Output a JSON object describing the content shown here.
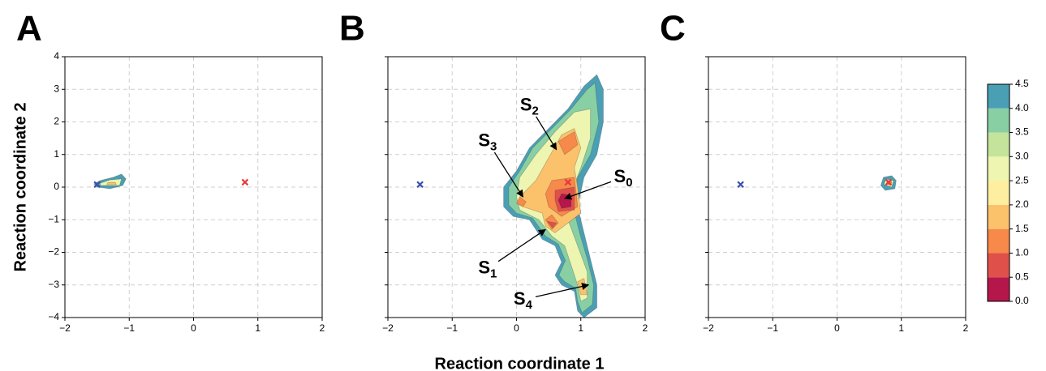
{
  "xlabel": "Reaction coordinate 1",
  "ylabel": "Reaction coordinate 2",
  "colorbar": {
    "ticks": [
      {
        "value": 0,
        "label": "0.0"
      },
      0.5,
      {
        "value": 1,
        "label": "1.0"
      },
      1.5,
      {
        "value": 2,
        "label": "2.0"
      },
      2.5,
      {
        "value": 3,
        "label": "3.0"
      },
      3.5,
      {
        "value": 4,
        "label": "4.0"
      },
      4.5
    ],
    "colors": [
      "#b5174b",
      "#e0504a",
      "#f7894a",
      "#fcc16b",
      "#fdeea0",
      "#eef5b0",
      "#c5e49b",
      "#88cfa4",
      "#4a9fb4"
    ]
  },
  "chart_data": [
    {
      "type": "contour",
      "panel_label": "A",
      "grid": true,
      "show_ytick_labels": true,
      "xlim": [
        -2,
        2
      ],
      "ylim": [
        -4,
        4
      ],
      "xticks": [
        {
          "value": -2,
          "label": "−2"
        },
        {
          "value": -1,
          "label": "−1"
        },
        0,
        1,
        2
      ],
      "yticks": [
        {
          "value": -4,
          "label": "−4"
        },
        {
          "value": -3,
          "label": "−3"
        },
        {
          "value": -2,
          "label": "−2"
        },
        {
          "value": -1,
          "label": "−1"
        },
        0,
        1,
        2,
        3,
        4
      ],
      "contours": [
        {
          "level": 4.5,
          "polygons": [
            [
              [
                -1.5,
                0.0
              ],
              [
                -1.3,
                -0.05
              ],
              [
                -1.1,
                0.05
              ],
              [
                -1.05,
                0.25
              ],
              [
                -1.12,
                0.4
              ],
              [
                -1.25,
                0.3
              ],
              [
                -1.45,
                0.2
              ],
              [
                -1.55,
                0.1
              ]
            ]
          ]
        },
        {
          "level": 3,
          "polygons": [
            [
              [
                -1.45,
                0.05
              ],
              [
                -1.15,
                0.05
              ],
              [
                -1.12,
                0.25
              ],
              [
                -1.3,
                0.22
              ],
              [
                -1.45,
                0.12
              ]
            ]
          ]
        },
        {
          "level": 2,
          "polygons": [
            [
              [
                -1.35,
                0.08
              ],
              [
                -1.2,
                0.08
              ],
              [
                -1.22,
                0.15
              ],
              [
                -1.33,
                0.14
              ]
            ]
          ]
        }
      ],
      "points": {
        "x": [
          -1.5,
          0.8
        ],
        "y": [
          0.08,
          0.15
        ],
        "colors": [
          "#3a4fb0",
          "#e83a3a"
        ]
      },
      "annotations": []
    },
    {
      "type": "contour",
      "panel_label": "B",
      "grid": true,
      "show_ytick_labels": false,
      "xlim": [
        -2,
        2
      ],
      "ylim": [
        -4,
        4
      ],
      "xticks": [
        {
          "value": -2,
          "label": "−2"
        },
        {
          "value": -1,
          "label": "−1"
        },
        0,
        1,
        2
      ],
      "yticks": [
        -4,
        -3,
        -2,
        -1,
        0,
        1,
        2,
        3,
        4
      ],
      "contours": [
        {
          "level": 4.5,
          "polygons": [
            [
              [
                1.25,
                3.45
              ],
              [
                1.35,
                3.0
              ],
              [
                1.35,
                2.0
              ],
              [
                1.25,
                1.0
              ],
              [
                1.05,
                0.3
              ],
              [
                0.95,
                -0.6
              ],
              [
                1.05,
                -1.4
              ],
              [
                1.15,
                -2.2
              ],
              [
                1.25,
                -3.0
              ],
              [
                1.25,
                -3.7
              ],
              [
                1.05,
                -4.0
              ],
              [
                0.95,
                -3.8
              ],
              [
                0.9,
                -3.2
              ],
              [
                0.7,
                -3.0
              ],
              [
                0.6,
                -2.7
              ],
              [
                0.7,
                -2.3
              ],
              [
                0.6,
                -1.8
              ],
              [
                0.4,
                -1.6
              ],
              [
                0.2,
                -1.0
              ],
              [
                -0.05,
                -0.9
              ],
              [
                -0.2,
                -0.6
              ],
              [
                -0.2,
                0.0
              ],
              [
                0.0,
                0.5
              ],
              [
                0.2,
                1.2
              ],
              [
                0.5,
                1.8
              ],
              [
                0.8,
                2.4
              ],
              [
                1.05,
                3.1
              ]
            ]
          ]
        },
        {
          "level": 4,
          "polygons": [
            [
              [
                1.22,
                3.2
              ],
              [
                1.28,
                2.0
              ],
              [
                1.15,
                1.0
              ],
              [
                0.95,
                0.3
              ],
              [
                0.88,
                -0.6
              ],
              [
                0.98,
                -1.4
              ],
              [
                1.1,
                -2.2
              ],
              [
                1.2,
                -3.0
              ],
              [
                1.18,
                -3.6
              ],
              [
                1.02,
                -3.85
              ],
              [
                0.95,
                -3.5
              ],
              [
                0.92,
                -3.1
              ],
              [
                0.75,
                -2.9
              ],
              [
                0.66,
                -2.7
              ],
              [
                0.76,
                -2.25
              ],
              [
                0.65,
                -1.75
              ],
              [
                0.45,
                -1.5
              ],
              [
                0.25,
                -0.95
              ],
              [
                0.0,
                -0.8
              ],
              [
                -0.12,
                -0.55
              ],
              [
                -0.12,
                0.0
              ],
              [
                0.05,
                0.5
              ],
              [
                0.25,
                1.2
              ],
              [
                0.55,
                1.8
              ],
              [
                0.85,
                2.4
              ],
              [
                1.1,
                3.0
              ]
            ]
          ]
        },
        {
          "level": 3,
          "polygons": [
            [
              [
                1.15,
                2.4
              ],
              [
                1.15,
                1.5
              ],
              [
                1.0,
                0.6
              ],
              [
                0.85,
                -0.2
              ],
              [
                0.8,
                -1.0
              ],
              [
                0.95,
                -1.8
              ],
              [
                1.1,
                -2.6
              ],
              [
                1.1,
                -3.4
              ],
              [
                1.0,
                -3.5
              ],
              [
                0.95,
                -3.0
              ],
              [
                0.85,
                -2.4
              ],
              [
                0.75,
                -1.8
              ],
              [
                0.55,
                -1.5
              ],
              [
                0.35,
                -1.0
              ],
              [
                0.05,
                -0.7
              ],
              [
                0.0,
                -0.3
              ],
              [
                0.05,
                0.3
              ],
              [
                0.3,
                1.0
              ],
              [
                0.6,
                1.7
              ],
              [
                0.9,
                2.3
              ]
            ]
          ]
        },
        {
          "level": 2,
          "polygons": [
            [
              [
                0.9,
                1.8
              ],
              [
                1.0,
                1.2
              ],
              [
                0.9,
                0.6
              ],
              [
                0.95,
                0.0
              ],
              [
                1.0,
                -0.8
              ],
              [
                0.8,
                -1.1
              ],
              [
                0.6,
                -1.4
              ],
              [
                0.45,
                -1.2
              ],
              [
                0.4,
                -0.8
              ],
              [
                0.1,
                -0.6
              ],
              [
                0.05,
                -0.3
              ],
              [
                0.3,
                0.2
              ],
              [
                0.5,
                0.9
              ],
              [
                0.7,
                1.6
              ]
            ],
            [
              [
                1.05,
                -2.8
              ],
              [
                1.1,
                -3.3
              ],
              [
                1.0,
                -3.3
              ],
              [
                0.95,
                -2.9
              ]
            ]
          ]
        },
        {
          "level": 1.5,
          "polygons": [
            [
              [
                0.65,
                1.4
              ],
              [
                0.9,
                1.7
              ],
              [
                0.95,
                1.3
              ],
              [
                0.75,
                1.0
              ]
            ],
            [
              [
                0.55,
                0.2
              ],
              [
                0.9,
                0.3
              ],
              [
                0.95,
                -0.6
              ],
              [
                0.7,
                -0.9
              ],
              [
                0.5,
                -0.6
              ],
              [
                0.45,
                -0.2
              ]
            ],
            [
              [
                0.45,
                -1.0
              ],
              [
                0.55,
                -1.3
              ],
              [
                0.65,
                -1.1
              ],
              [
                0.55,
                -0.85
              ]
            ],
            [
              [
                0.05,
                -0.3
              ],
              [
                0.15,
                -0.45
              ],
              [
                0.1,
                -0.6
              ],
              [
                0.0,
                -0.5
              ]
            ]
          ]
        },
        {
          "level": 1,
          "polygons": [
            [
              [
                0.6,
                -0.1
              ],
              [
                0.9,
                0.0
              ],
              [
                0.9,
                -0.7
              ],
              [
                0.65,
                -0.75
              ],
              [
                0.6,
                -0.4
              ]
            ],
            [
              [
                0.48,
                -1.05
              ],
              [
                0.56,
                -1.25
              ],
              [
                0.62,
                -1.1
              ]
            ]
          ]
        },
        {
          "level": 0.5,
          "polygons": [
            [
              [
                0.7,
                -0.2
              ],
              [
                0.85,
                -0.25
              ],
              [
                0.85,
                -0.6
              ],
              [
                0.7,
                -0.65
              ],
              [
                0.65,
                -0.4
              ]
            ]
          ]
        }
      ],
      "points": {
        "x": [
          -1.5,
          0.8
        ],
        "y": [
          0.08,
          0.15
        ],
        "colors": [
          "#3a4fb0",
          "#e83a3a"
        ]
      },
      "annotations": [
        {
          "text": "S",
          "sub": "0",
          "xy": [
            0.75,
            -0.35
          ],
          "xytext": [
            1.66,
            0.3
          ]
        },
        {
          "text": "S",
          "sub": "1",
          "xy": [
            0.45,
            -1.3
          ],
          "xytext": [
            -0.45,
            -2.5
          ]
        },
        {
          "text": "S",
          "sub": "2",
          "xy": [
            0.62,
            1.15
          ],
          "xytext": [
            0.2,
            2.5
          ]
        },
        {
          "text": "S",
          "sub": "3",
          "xy": [
            0.1,
            -0.3
          ],
          "xytext": [
            -0.45,
            1.4
          ]
        },
        {
          "text": "S",
          "sub": "4",
          "xy": [
            1.12,
            -3.0
          ],
          "xytext": [
            0.1,
            -3.45
          ]
        }
      ]
    },
    {
      "type": "contour",
      "panel_label": "C",
      "grid": true,
      "show_ytick_labels": false,
      "xlim": [
        -2,
        2
      ],
      "ylim": [
        -4,
        4
      ],
      "xticks": [
        {
          "value": -2,
          "label": "−2"
        },
        {
          "value": -1,
          "label": "−1"
        },
        0,
        1,
        2
      ],
      "yticks": [
        -4,
        -3,
        -2,
        -1,
        0,
        1,
        2,
        3,
        4
      ],
      "contours": [
        {
          "level": 4.5,
          "polygons": [
            [
              [
                0.68,
                0.05
              ],
              [
                0.75,
                -0.1
              ],
              [
                0.9,
                -0.05
              ],
              [
                0.92,
                0.2
              ],
              [
                0.85,
                0.35
              ],
              [
                0.72,
                0.3
              ]
            ]
          ]
        },
        {
          "level": 3,
          "polygons": [
            [
              [
                0.73,
                0.08
              ],
              [
                0.85,
                0.0
              ],
              [
                0.88,
                0.2
              ],
              [
                0.76,
                0.25
              ]
            ]
          ]
        },
        {
          "level": 1.5,
          "polygons": [
            [
              [
                0.77,
                0.1
              ],
              [
                0.84,
                0.05
              ],
              [
                0.85,
                0.18
              ],
              [
                0.78,
                0.2
              ]
            ]
          ]
        }
      ],
      "points": {
        "x": [
          -1.5,
          0.8
        ],
        "y": [
          0.08,
          0.15
        ],
        "colors": [
          "#3a4fb0",
          "#e83a3a"
        ]
      },
      "annotations": []
    }
  ]
}
